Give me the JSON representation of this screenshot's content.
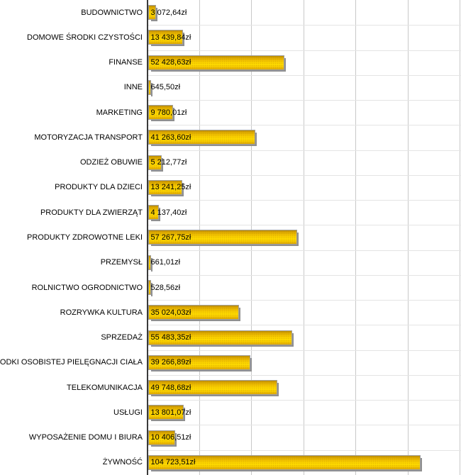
{
  "chart_data": {
    "type": "bar",
    "orientation": "horizontal",
    "title": "",
    "xlabel": "",
    "ylabel": "",
    "xlim": [
      0,
      120000
    ],
    "x_tick_step": 20000,
    "grid": "vertical-major",
    "legend": "none",
    "currency_suffix": "zł",
    "categories": [
      "BUDOWNICTWO",
      "DOMOWE ŚRODKI CZYSTOŚCI",
      "FINANSE",
      "INNE",
      "MARKETING",
      "MOTORYZACJA TRANSPORT",
      "ODZIEŻ OBUWIE",
      "PRODUKTY DLA DZIECI",
      "PRODUKTY DLA ZWIERZĄT",
      "PRODUKTY ZDROWOTNE LEKI",
      "PRZEMYSŁ",
      "ROLNICTWO OGRODNICTWO",
      "ROZRYWKA KULTURA",
      "SPRZEDAŻ",
      "ŚRODKI OSOBISTEJ PIELĘGNACJI CIAŁA",
      "TELEKOMUNIKACJA",
      "USŁUGI",
      "WYPOSAŻENIE DOMU I BIURA",
      "ŻYWNOŚĆ"
    ],
    "values": [
      3072.64,
      13439.84,
      52428.63,
      645.5,
      9780.01,
      41263.6,
      5212.77,
      13241.25,
      4137.4,
      57267.75,
      661.01,
      528.56,
      35024.03,
      55483.35,
      39266.89,
      49748.68,
      13801.07,
      10406.51,
      104723.51
    ],
    "value_labels": [
      "3 072,64zł",
      "13 439,84zł",
      "52 428,63zł",
      "645,50zł",
      "9 780,01zł",
      "41 263,60zł",
      "5 212,77zł",
      "13 241,25zł",
      "4 137,40zł",
      "57 267,75zł",
      "661,01zł",
      "528,56zł",
      "35 024,03zł",
      "55 483,35zł",
      "39 266,89zł",
      "49 748,68zł",
      "13 801,07zł",
      "10 406,51zł",
      "104 723,51zł"
    ]
  },
  "colors": {
    "background": "#ffffff",
    "bar_gradient_top": "#bd8d00",
    "bar_gradient_bright": "#ffdb00",
    "bar_gradient_bottom": "#d9a300",
    "bar_border": "#a0a0a0",
    "bar_shadow": "#8f8f8f",
    "vertical_gridline": "#c9c9c9",
    "row_separator": "#e4e4e4",
    "category_axis": "#3a3a3a",
    "text": "#000000"
  }
}
